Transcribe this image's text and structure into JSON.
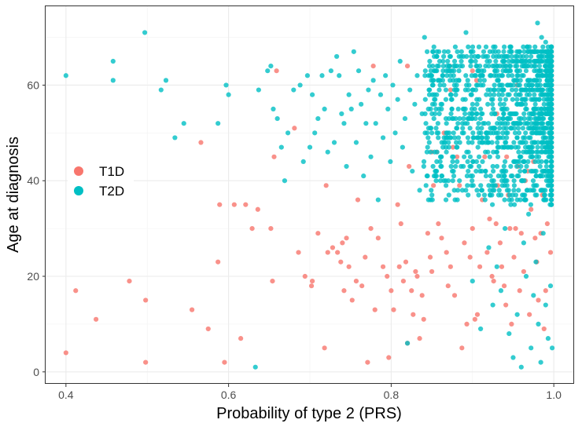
{
  "chart_data": {
    "type": "scatter",
    "xlabel": "Probability of type 2 (PRS)",
    "ylabel": "Age at diagnosis",
    "xlim": [
      0.375,
      1.025
    ],
    "ylim": [
      -2.5,
      76.5
    ],
    "xticks": [
      0.4,
      0.6,
      0.8,
      1.0
    ],
    "xtick_labels": [
      "0.4",
      "0.6",
      "0.8",
      "1.0"
    ],
    "yticks": [
      0,
      20,
      40,
      60
    ],
    "ytick_labels": [
      "0",
      "20",
      "40",
      "60"
    ],
    "grid": true,
    "legend": {
      "position": "left-middle"
    },
    "series": [
      {
        "name": "T1D",
        "color": "#F8766D",
        "points": [
          [
            0.4,
            4
          ],
          [
            0.412,
            17
          ],
          [
            0.437,
            11
          ],
          [
            0.478,
            19
          ],
          [
            0.498,
            15
          ],
          [
            0.498,
            2
          ],
          [
            0.555,
            13
          ],
          [
            0.566,
            48
          ],
          [
            0.575,
            9
          ],
          [
            0.587,
            23
          ],
          [
            0.589,
            35
          ],
          [
            0.595,
            2
          ],
          [
            0.607,
            35
          ],
          [
            0.615,
            7
          ],
          [
            0.621,
            35
          ],
          [
            0.629,
            30
          ],
          [
            0.636,
            34
          ],
          [
            0.652,
            30
          ],
          [
            0.654,
            19
          ],
          [
            0.656,
            45
          ],
          [
            0.681,
            51
          ],
          [
            0.686,
            25
          ],
          [
            0.694,
            20
          ],
          [
            0.702,
            18
          ],
          [
            0.703,
            19
          ],
          [
            0.71,
            29
          ],
          [
            0.718,
            5
          ],
          [
            0.72,
            39
          ],
          [
            0.722,
            25
          ],
          [
            0.728,
            26
          ],
          [
            0.734,
            25
          ],
          [
            0.738,
            23
          ],
          [
            0.74,
            27
          ],
          [
            0.742,
            17
          ],
          [
            0.745,
            28
          ],
          [
            0.748,
            22
          ],
          [
            0.752,
            15
          ],
          [
            0.757,
            19
          ],
          [
            0.759,
            36
          ],
          [
            0.764,
            18
          ],
          [
            0.768,
            24
          ],
          [
            0.771,
            2
          ],
          [
            0.775,
            30
          ],
          [
            0.78,
            13
          ],
          [
            0.784,
            28
          ],
          [
            0.79,
            22
          ],
          [
            0.795,
            20
          ],
          [
            0.797,
            3
          ],
          [
            0.8,
            17
          ],
          [
            0.803,
            13
          ],
          [
            0.808,
            35
          ],
          [
            0.81,
            22
          ],
          [
            0.812,
            31
          ],
          [
            0.815,
            19
          ],
          [
            0.818,
            23
          ],
          [
            0.82,
            6
          ],
          [
            0.822,
            43
          ],
          [
            0.825,
            17
          ],
          [
            0.827,
            12
          ],
          [
            0.83,
            21
          ],
          [
            0.832,
            20
          ],
          [
            0.835,
            7
          ],
          [
            0.838,
            16
          ],
          [
            0.84,
            11
          ],
          [
            0.845,
            29
          ],
          [
            0.848,
            24
          ],
          [
            0.85,
            21
          ],
          [
            0.852,
            39
          ],
          [
            0.856,
            46
          ],
          [
            0.858,
            31
          ],
          [
            0.862,
            28
          ],
          [
            0.865,
            50
          ],
          [
            0.868,
            25
          ],
          [
            0.87,
            18
          ],
          [
            0.873,
            22
          ],
          [
            0.876,
            47
          ],
          [
            0.878,
            16
          ],
          [
            0.881,
            45
          ],
          [
            0.884,
            39
          ],
          [
            0.887,
            5
          ],
          [
            0.89,
            27
          ],
          [
            0.893,
            10
          ],
          [
            0.897,
            24
          ],
          [
            0.9,
            30
          ],
          [
            0.903,
            11
          ],
          [
            0.906,
            12
          ],
          [
            0.909,
            22
          ],
          [
            0.912,
            36
          ],
          [
            0.915,
            45
          ],
          [
            0.918,
            25
          ],
          [
            0.921,
            32
          ],
          [
            0.924,
            20
          ],
          [
            0.926,
            19
          ],
          [
            0.929,
            31
          ],
          [
            0.931,
            39
          ],
          [
            0.934,
            27
          ],
          [
            0.936,
            22
          ],
          [
            0.939,
            18
          ],
          [
            0.941,
            14
          ],
          [
            0.944,
            37
          ],
          [
            0.946,
            30
          ],
          [
            0.948,
            10
          ],
          [
            0.951,
            24
          ],
          [
            0.953,
            30
          ],
          [
            0.956,
            43
          ],
          [
            0.958,
            17
          ],
          [
            0.96,
            29
          ],
          [
            0.963,
            21
          ],
          [
            0.965,
            40
          ],
          [
            0.968,
            42
          ],
          [
            0.97,
            12
          ],
          [
            0.972,
            34
          ],
          [
            0.975,
            44
          ],
          [
            0.977,
            28
          ],
          [
            0.979,
            23
          ],
          [
            0.981,
            15
          ],
          [
            0.984,
            29
          ],
          [
            0.986,
            37
          ],
          [
            0.988,
            9
          ],
          [
            0.99,
            17
          ],
          [
            0.992,
            31
          ],
          [
            0.994,
            48
          ],
          [
            0.996,
            25
          ],
          [
            0.82,
            64
          ],
          [
            0.85,
            46
          ],
          [
            0.872,
            64
          ],
          [
            0.9,
            63
          ],
          [
            0.93,
            54
          ],
          [
            0.955,
            60
          ],
          [
            0.978,
            52
          ],
          [
            0.659,
            63
          ],
          [
            0.778,
            64
          ],
          [
            0.873,
            59
          ],
          [
            0.905,
            61
          ],
          [
            0.942,
            45
          ]
        ]
      },
      {
        "name": "T2D",
        "color": "#00BFC4",
        "points": [
          [
            0.4,
            62
          ],
          [
            0.458,
            65
          ],
          [
            0.458,
            61
          ],
          [
            0.497,
            71
          ],
          [
            0.517,
            59
          ],
          [
            0.523,
            61
          ],
          [
            0.534,
            49
          ],
          [
            0.545,
            52
          ],
          [
            0.587,
            52
          ],
          [
            0.597,
            60
          ],
          [
            0.6,
            58
          ],
          [
            0.633,
            1
          ],
          [
            0.637,
            59
          ],
          [
            0.648,
            63
          ],
          [
            0.652,
            64
          ],
          [
            0.655,
            55
          ],
          [
            0.66,
            53
          ],
          [
            0.665,
            47
          ],
          [
            0.669,
            40
          ],
          [
            0.673,
            50
          ],
          [
            0.68,
            59
          ],
          [
            0.688,
            60
          ],
          [
            0.692,
            44
          ],
          [
            0.697,
            62
          ],
          [
            0.7,
            47
          ],
          [
            0.703,
            58
          ],
          [
            0.706,
            50
          ],
          [
            0.71,
            53
          ],
          [
            0.715,
            62
          ],
          [
            0.718,
            55
          ],
          [
            0.722,
            46
          ],
          [
            0.726,
            63
          ],
          [
            0.73,
            48
          ],
          [
            0.733,
            66
          ],
          [
            0.736,
            62
          ],
          [
            0.739,
            54
          ],
          [
            0.742,
            52
          ],
          [
            0.745,
            43
          ],
          [
            0.748,
            58
          ],
          [
            0.751,
            55
          ],
          [
            0.754,
            67
          ],
          [
            0.757,
            48
          ],
          [
            0.76,
            63
          ],
          [
            0.763,
            56
          ],
          [
            0.766,
            41
          ],
          [
            0.769,
            52
          ],
          [
            0.772,
            59
          ],
          [
            0.775,
            45
          ],
          [
            0.778,
            61
          ],
          [
            0.781,
            52
          ],
          [
            0.784,
            36
          ],
          [
            0.787,
            58
          ],
          [
            0.79,
            49
          ],
          [
            0.793,
            62
          ],
          [
            0.796,
            55
          ],
          [
            0.799,
            44
          ],
          [
            0.802,
            60
          ],
          [
            0.805,
            50
          ],
          [
            0.808,
            57
          ],
          [
            0.811,
            65
          ],
          [
            0.814,
            47
          ],
          [
            0.817,
            53
          ],
          [
            0.82,
            6
          ],
          [
            0.823,
            59
          ],
          [
            0.826,
            42
          ],
          [
            0.829,
            56
          ],
          [
            0.832,
            62
          ],
          [
            0.835,
            38
          ],
          [
            0.838,
            54
          ],
          [
            0.841,
            70
          ],
          [
            0.844,
            46
          ],
          [
            0.847,
            58
          ],
          [
            0.85,
            50
          ],
          [
            0.853,
            63
          ],
          [
            0.856,
            44
          ],
          [
            0.859,
            55
          ],
          [
            0.862,
            41
          ],
          [
            0.865,
            60
          ],
          [
            0.868,
            52
          ],
          [
            0.871,
            37
          ],
          [
            0.874,
            57
          ],
          [
            0.877,
            64
          ],
          [
            0.88,
            48
          ],
          [
            0.883,
            61
          ],
          [
            0.886,
            43
          ],
          [
            0.889,
            53
          ],
          [
            0.892,
            71
          ],
          [
            0.895,
            46
          ],
          [
            0.898,
            58
          ],
          [
            0.901,
            39
          ],
          [
            0.904,
            62
          ],
          [
            0.907,
            49
          ],
          [
            0.91,
            55
          ],
          [
            0.913,
            66
          ],
          [
            0.916,
            42
          ],
          [
            0.919,
            59
          ],
          [
            0.922,
            51
          ],
          [
            0.925,
            38
          ],
          [
            0.928,
            63
          ],
          [
            0.931,
            47
          ],
          [
            0.934,
            57
          ],
          [
            0.937,
            65
          ],
          [
            0.94,
            44
          ],
          [
            0.943,
            53
          ],
          [
            0.946,
            68
          ],
          [
            0.949,
            41
          ],
          [
            0.952,
            61
          ],
          [
            0.955,
            49
          ],
          [
            0.958,
            56
          ],
          [
            0.961,
            64
          ],
          [
            0.964,
            36
          ],
          [
            0.967,
            58
          ],
          [
            0.97,
            46
          ],
          [
            0.973,
            67
          ],
          [
            0.976,
            52
          ],
          [
            0.979,
            39
          ],
          [
            0.982,
            62
          ],
          [
            0.985,
            48
          ],
          [
            0.988,
            57
          ],
          [
            0.991,
            43
          ],
          [
            0.994,
            60
          ],
          [
            0.997,
            51
          ],
          [
            0.9,
            19
          ],
          [
            0.91,
            9
          ],
          [
            0.92,
            26
          ],
          [
            0.925,
            14
          ],
          [
            0.93,
            22
          ],
          [
            0.935,
            17
          ],
          [
            0.94,
            30
          ],
          [
            0.945,
            8
          ],
          [
            0.95,
            3
          ],
          [
            0.955,
            12
          ],
          [
            0.96,
            1
          ],
          [
            0.963,
            27
          ],
          [
            0.966,
            20
          ],
          [
            0.969,
            33
          ],
          [
            0.972,
            5
          ],
          [
            0.975,
            16
          ],
          [
            0.978,
            23
          ],
          [
            0.981,
            10
          ],
          [
            0.984,
            2
          ],
          [
            0.987,
            29
          ],
          [
            0.99,
            14
          ],
          [
            0.993,
            7
          ],
          [
            0.996,
            18
          ],
          [
            0.998,
            5
          ],
          [
            0.98,
            73
          ],
          [
            0.985,
            70
          ],
          [
            0.99,
            69
          ],
          [
            0.995,
            66
          ]
        ],
        "dense_region": {
          "x_range": [
            0.84,
            1.0
          ],
          "y_range": [
            35,
            68
          ],
          "note": "heavily overplotted cluster"
        }
      }
    ]
  }
}
